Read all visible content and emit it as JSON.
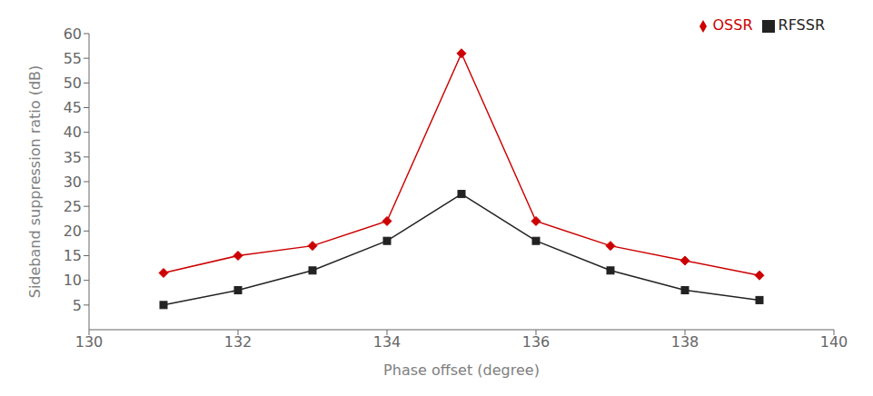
{
  "chart_data": {
    "type": "line",
    "x": [
      131,
      132,
      133,
      134,
      135,
      136,
      137,
      138,
      139
    ],
    "series": [
      {
        "name": "RFSSR",
        "color": "#222222",
        "marker": "square",
        "values": [
          5,
          8,
          12,
          18,
          27.5,
          18,
          12,
          8,
          6
        ]
      },
      {
        "name": "OSSR",
        "color": "#cc0000",
        "marker": "diamond",
        "values": [
          11.5,
          15,
          17,
          22,
          56,
          22,
          17,
          14,
          11
        ]
      }
    ],
    "xlabel": "Phase offset (degree)",
    "ylabel": "Sideband suppression ratio (dB)",
    "xlim": [
      130,
      140
    ],
    "ylim": [
      0,
      60
    ],
    "xticks": [
      130,
      132,
      134,
      136,
      138,
      140
    ],
    "yticks": [
      5,
      10,
      15,
      20,
      25,
      30,
      35,
      40,
      45,
      50,
      55,
      60
    ],
    "legend": "upper right",
    "grid": false
  }
}
